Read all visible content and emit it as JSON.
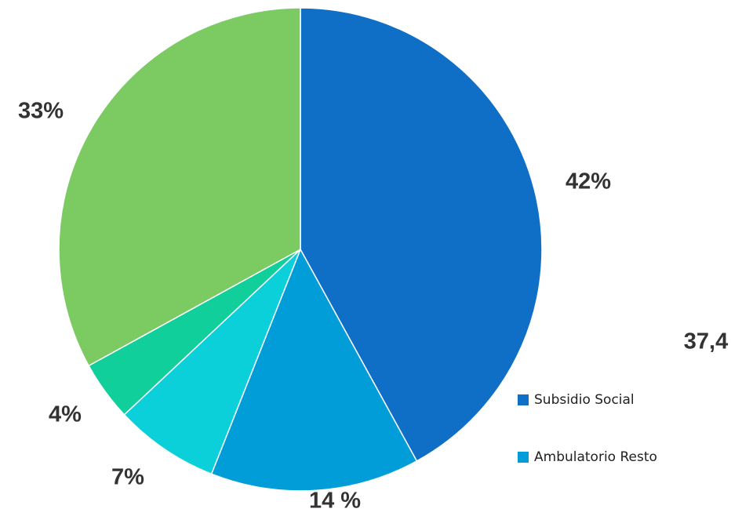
{
  "chart_data": {
    "type": "pie",
    "categories": [
      "Subsidio Social",
      "Ambulatorio Resto",
      null,
      null,
      null
    ],
    "values": [
      42,
      14,
      7,
      4,
      33
    ],
    "value_labels": [
      "42%",
      "14 %",
      "7%",
      "4%",
      "33%"
    ],
    "colors": [
      "#0f6fc6",
      "#009dd9",
      "#0bd0d9",
      "#10cf9b",
      "#7cca62"
    ],
    "annotations": [
      "37,4"
    ]
  }
}
